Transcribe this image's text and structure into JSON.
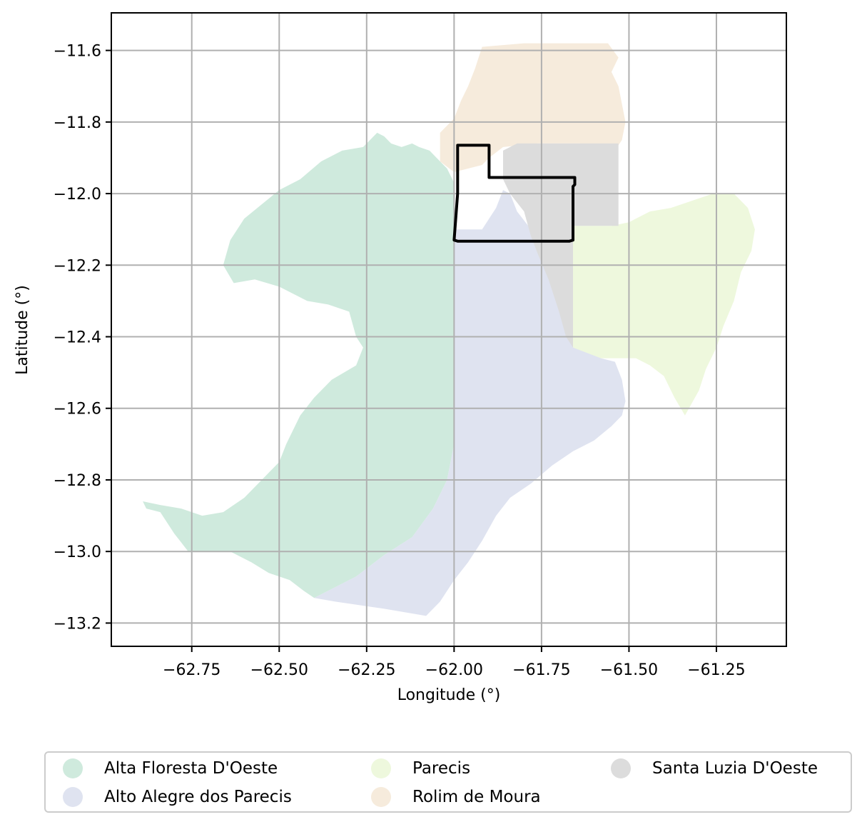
{
  "chart_data": {
    "type": "map",
    "xlabel": "Longitude (°)",
    "ylabel": "Latitude (°)",
    "xlim": [
      -62.98,
      -61.05
    ],
    "ylim": [
      -13.265,
      -11.495
    ],
    "xticks": [
      -62.75,
      -62.5,
      -62.25,
      -62.0,
      -61.75,
      -61.5,
      -61.25
    ],
    "yticks": [
      -11.6,
      -11.8,
      -12.0,
      -12.2,
      -12.4,
      -12.6,
      -12.8,
      -13.0,
      -13.2
    ],
    "xtick_labels": [
      "−62.75",
      "−62.50",
      "−62.25",
      "−62.00",
      "−61.75",
      "−61.50",
      "−61.25"
    ],
    "ytick_labels": [
      "−11.6",
      "−11.8",
      "−12.0",
      "−12.2",
      "−12.4",
      "−12.6",
      "−12.8",
      "−13.0",
      "−13.2"
    ],
    "grid": true,
    "legend_position": "bottom",
    "regions": [
      {
        "name": "Alta Floresta D'Oeste",
        "color": "#cfeadd",
        "polygon": [
          [
            -62.22,
            -11.83
          ],
          [
            -62.2,
            -11.84
          ],
          [
            -62.18,
            -11.86
          ],
          [
            -62.15,
            -11.87
          ],
          [
            -62.12,
            -11.86
          ],
          [
            -62.1,
            -11.87
          ],
          [
            -62.07,
            -11.88
          ],
          [
            -62.05,
            -11.9
          ],
          [
            -62.02,
            -11.93
          ],
          [
            -62.0,
            -11.97
          ],
          [
            -62.0,
            -12.0
          ],
          [
            -62.0,
            -12.1
          ],
          [
            -62.0,
            -12.2
          ],
          [
            -62.0,
            -12.3
          ],
          [
            -62.0,
            -12.4
          ],
          [
            -62.0,
            -12.5
          ],
          [
            -62.0,
            -12.6
          ],
          [
            -62.0,
            -12.7
          ],
          [
            -62.02,
            -12.8
          ],
          [
            -62.06,
            -12.88
          ],
          [
            -62.12,
            -12.96
          ],
          [
            -62.2,
            -13.01
          ],
          [
            -62.28,
            -13.07
          ],
          [
            -62.34,
            -13.1
          ],
          [
            -62.4,
            -13.13
          ],
          [
            -62.43,
            -13.11
          ],
          [
            -62.47,
            -13.08
          ],
          [
            -62.53,
            -13.06
          ],
          [
            -62.58,
            -13.03
          ],
          [
            -62.64,
            -13.0
          ],
          [
            -62.7,
            -13.0
          ],
          [
            -62.76,
            -13.0
          ],
          [
            -62.8,
            -12.95
          ],
          [
            -62.84,
            -12.89
          ],
          [
            -62.88,
            -12.88
          ],
          [
            -62.89,
            -12.86
          ],
          [
            -62.84,
            -12.87
          ],
          [
            -62.78,
            -12.88
          ],
          [
            -62.72,
            -12.9
          ],
          [
            -62.66,
            -12.89
          ],
          [
            -62.6,
            -12.85
          ],
          [
            -62.55,
            -12.8
          ],
          [
            -62.5,
            -12.75
          ],
          [
            -62.48,
            -12.7
          ],
          [
            -62.44,
            -12.62
          ],
          [
            -62.4,
            -12.57
          ],
          [
            -62.35,
            -12.52
          ],
          [
            -62.28,
            -12.48
          ],
          [
            -62.26,
            -12.43
          ],
          [
            -62.28,
            -12.4
          ],
          [
            -62.3,
            -12.33
          ],
          [
            -62.36,
            -12.31
          ],
          [
            -62.42,
            -12.3
          ],
          [
            -62.5,
            -12.26
          ],
          [
            -62.57,
            -12.24
          ],
          [
            -62.63,
            -12.25
          ],
          [
            -62.66,
            -12.2
          ],
          [
            -62.64,
            -12.13
          ],
          [
            -62.6,
            -12.07
          ],
          [
            -62.55,
            -12.03
          ],
          [
            -62.5,
            -11.99
          ],
          [
            -62.44,
            -11.96
          ],
          [
            -62.38,
            -11.91
          ],
          [
            -62.32,
            -11.88
          ],
          [
            -62.26,
            -11.87
          ]
        ]
      },
      {
        "name": "Alto Alegre dos Parecis",
        "color": "#dfe3f0",
        "polygon": [
          [
            -62.0,
            -12.1
          ],
          [
            -61.92,
            -12.1
          ],
          [
            -61.88,
            -12.04
          ],
          [
            -61.86,
            -11.99
          ],
          [
            -61.84,
            -12.0
          ],
          [
            -61.82,
            -12.05
          ],
          [
            -61.78,
            -12.1
          ],
          [
            -61.74,
            -12.18
          ],
          [
            -61.7,
            -12.25
          ],
          [
            -61.68,
            -12.32
          ],
          [
            -61.66,
            -12.37
          ],
          [
            -61.62,
            -12.43
          ],
          [
            -61.58,
            -12.46
          ],
          [
            -61.54,
            -12.47
          ],
          [
            -61.52,
            -12.52
          ],
          [
            -61.51,
            -12.58
          ],
          [
            -61.52,
            -12.62
          ],
          [
            -61.55,
            -12.65
          ],
          [
            -61.6,
            -12.69
          ],
          [
            -61.66,
            -12.72
          ],
          [
            -61.72,
            -12.76
          ],
          [
            -61.78,
            -12.81
          ],
          [
            -61.84,
            -12.85
          ],
          [
            -61.88,
            -12.9
          ],
          [
            -61.92,
            -12.97
          ],
          [
            -61.96,
            -13.03
          ],
          [
            -62.0,
            -13.08
          ],
          [
            -62.04,
            -13.14
          ],
          [
            -62.08,
            -13.18
          ],
          [
            -62.14,
            -13.17
          ],
          [
            -62.2,
            -13.16
          ],
          [
            -62.27,
            -13.15
          ],
          [
            -62.34,
            -13.14
          ],
          [
            -62.4,
            -13.13
          ],
          [
            -62.34,
            -13.1
          ],
          [
            -62.28,
            -13.07
          ],
          [
            -62.2,
            -13.01
          ],
          [
            -62.12,
            -12.96
          ],
          [
            -62.06,
            -12.88
          ],
          [
            -62.02,
            -12.8
          ],
          [
            -62.0,
            -12.7
          ],
          [
            -62.0,
            -12.4
          ]
        ]
      },
      {
        "name": "Parecis",
        "color": "#eef8dd",
        "polygon": [
          [
            -61.66,
            -12.09
          ],
          [
            -61.55,
            -12.09
          ],
          [
            -61.5,
            -12.08
          ],
          [
            -61.44,
            -12.05
          ],
          [
            -61.38,
            -12.04
          ],
          [
            -61.32,
            -12.02
          ],
          [
            -61.26,
            -12.0
          ],
          [
            -61.2,
            -12.0
          ],
          [
            -61.16,
            -12.04
          ],
          [
            -61.14,
            -12.1
          ],
          [
            -61.15,
            -12.16
          ],
          [
            -61.18,
            -12.22
          ],
          [
            -61.2,
            -12.3
          ],
          [
            -61.23,
            -12.37
          ],
          [
            -61.25,
            -12.43
          ],
          [
            -61.28,
            -12.49
          ],
          [
            -61.3,
            -12.55
          ],
          [
            -61.34,
            -12.62
          ],
          [
            -61.37,
            -12.57
          ],
          [
            -61.4,
            -12.51
          ],
          [
            -61.44,
            -12.48
          ],
          [
            -61.48,
            -12.46
          ],
          [
            -61.52,
            -12.46
          ],
          [
            -61.58,
            -12.46
          ],
          [
            -61.66,
            -12.43
          ]
        ]
      },
      {
        "name": "Rolim de Moura",
        "color": "#f6ebdc",
        "polygon": [
          [
            -61.92,
            -11.59
          ],
          [
            -61.8,
            -11.58
          ],
          [
            -61.7,
            -11.58
          ],
          [
            -61.56,
            -11.58
          ],
          [
            -61.53,
            -11.62
          ],
          [
            -61.55,
            -11.66
          ],
          [
            -61.53,
            -11.7
          ],
          [
            -61.52,
            -11.75
          ],
          [
            -61.51,
            -11.8
          ],
          [
            -61.52,
            -11.85
          ],
          [
            -61.54,
            -11.88
          ],
          [
            -61.56,
            -11.9
          ],
          [
            -61.64,
            -11.86
          ],
          [
            -61.76,
            -11.86
          ],
          [
            -61.86,
            -11.87
          ],
          [
            -61.9,
            -11.9
          ],
          [
            -61.92,
            -11.92
          ],
          [
            -61.96,
            -11.93
          ],
          [
            -62.0,
            -11.94
          ],
          [
            -62.04,
            -11.91
          ],
          [
            -62.04,
            -11.83
          ],
          [
            -62.0,
            -11.79
          ],
          [
            -61.98,
            -11.74
          ],
          [
            -61.96,
            -11.7
          ],
          [
            -61.94,
            -11.65
          ]
        ]
      },
      {
        "name": "Santa Luzia D'Oeste",
        "color": "#dcdcdc",
        "polygon": [
          [
            -61.86,
            -11.88
          ],
          [
            -61.82,
            -11.86
          ],
          [
            -61.7,
            -11.86
          ],
          [
            -61.53,
            -11.86
          ],
          [
            -61.53,
            -12.09
          ],
          [
            -61.66,
            -12.09
          ],
          [
            -61.66,
            -12.43
          ],
          [
            -61.68,
            -12.4
          ],
          [
            -61.7,
            -12.33
          ],
          [
            -61.73,
            -12.24
          ],
          [
            -61.76,
            -12.17
          ],
          [
            -61.78,
            -12.12
          ],
          [
            -61.8,
            -12.05
          ],
          [
            -61.84,
            -12.0
          ],
          [
            -61.86,
            -11.96
          ]
        ]
      }
    ],
    "highlight_boundary": {
      "color": "#000000",
      "polygon": [
        [
          -61.99,
          -11.865
        ],
        [
          -61.9,
          -11.865
        ],
        [
          -61.9,
          -11.955
        ],
        [
          -61.655,
          -11.955
        ],
        [
          -61.655,
          -11.975
        ],
        [
          -61.66,
          -11.98
        ],
        [
          -61.66,
          -12.13
        ],
        [
          -61.67,
          -12.133
        ],
        [
          -61.82,
          -12.133
        ],
        [
          -61.99,
          -12.133
        ],
        [
          -62.0,
          -12.13
        ],
        [
          -61.99,
          -12.0
        ]
      ]
    }
  },
  "legend": {
    "entries": [
      {
        "label": "Alta Floresta D'Oeste",
        "color": "#cfeadd"
      },
      {
        "label": "Alto Alegre dos Parecis",
        "color": "#dfe3f0"
      },
      {
        "label": "Parecis",
        "color": "#eef8dd"
      },
      {
        "label": "Rolim de Moura",
        "color": "#f6ebdc"
      },
      {
        "label": "Santa Luzia D'Oeste",
        "color": "#dcdcdc"
      }
    ]
  }
}
